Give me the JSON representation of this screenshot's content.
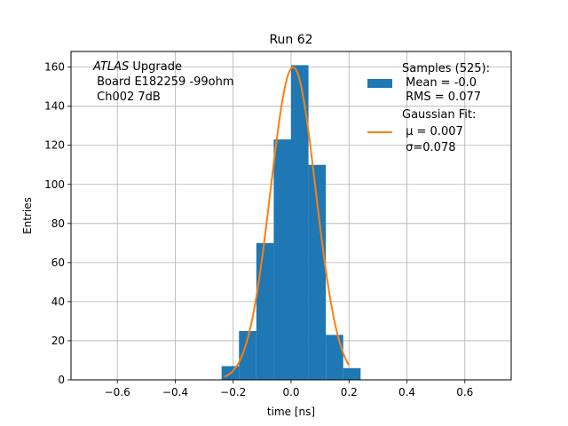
{
  "chart_data": {
    "type": "bar",
    "title": "Run 62",
    "xlabel": "time [ns]",
    "ylabel": "Entries",
    "xlim": [
      -0.76,
      0.76
    ],
    "ylim": [
      0,
      168
    ],
    "xticks": [
      -0.6,
      -0.4,
      -0.2,
      0.0,
      0.2,
      0.4,
      0.6
    ],
    "xtick_labels": [
      "−0.6",
      "−0.4",
      "−0.2",
      "0.0",
      "0.2",
      "0.4",
      "0.6"
    ],
    "yticks": [
      0,
      20,
      40,
      60,
      80,
      100,
      120,
      140,
      160
    ],
    "yticks_labels": [
      "0",
      "20",
      "40",
      "60",
      "80",
      "100",
      "120",
      "140",
      "160"
    ],
    "grid": true,
    "legend_position": "top-right",
    "annotation": {
      "line1_italic": "ATLAS",
      "line1_rest": " Upgrade",
      "line2": " Board E182259 -99ohm",
      "line3": " Ch002 7dB"
    },
    "histogram": {
      "bin_edges": [
        -0.24,
        -0.18,
        -0.12,
        -0.06,
        0.0,
        0.06,
        0.12,
        0.18,
        0.24
      ],
      "bins": [
        {
          "x0": -0.24,
          "x1": -0.18,
          "value": 7
        },
        {
          "x0": -0.18,
          "x1": -0.12,
          "value": 25
        },
        {
          "x0": -0.12,
          "x1": -0.06,
          "value": 70
        },
        {
          "x0": -0.06,
          "x1": 0.0,
          "value": 123
        },
        {
          "x0": 0.0,
          "x1": 0.06,
          "value": 161
        },
        {
          "x0": 0.06,
          "x1": 0.12,
          "value": 110
        },
        {
          "x0": 0.12,
          "x1": 0.18,
          "value": 23
        },
        {
          "x0": 0.18,
          "x1": 0.24,
          "value": 6
        }
      ],
      "color": "#1f77b4"
    },
    "fit": {
      "type": "gaussian",
      "mu": 0.007,
      "sigma": 0.078,
      "amplitude": 160,
      "x_range": [
        -0.23,
        0.2
      ],
      "color": "#ff7f0e"
    },
    "legend": {
      "samples": {
        "line1": "Samples (525):",
        "line2": " Mean = -0.0",
        "line3": " RMS = 0.077"
      },
      "fit": {
        "line1": "Gaussian Fit:",
        "line2": " μ = 0.007",
        "line3": " σ=0.078"
      }
    }
  }
}
